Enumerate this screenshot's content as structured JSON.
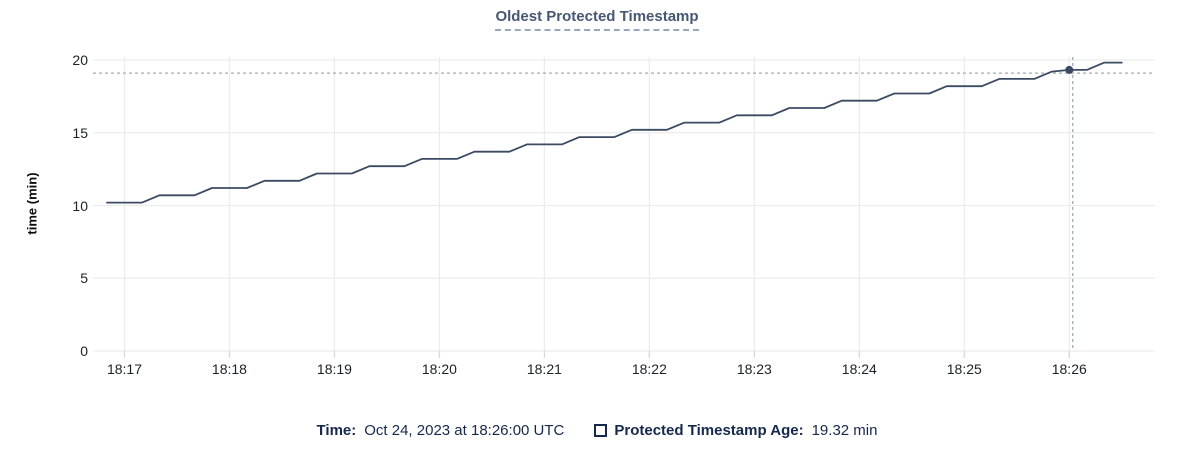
{
  "title": {
    "text": "Oldest Protected Timestamp"
  },
  "legend": {
    "time_label": "Time:",
    "time_value": "Oct 24, 2023 at 18:26:00 UTC",
    "series_label": "Protected Timestamp Age:",
    "series_value": "19.32 min"
  },
  "colors": {
    "background": "#ffffff",
    "title_text": "#475872",
    "title_underline": "#9aa6bf",
    "grid": "#ececec",
    "axis_tick_mark": "#d8d8d8",
    "tick_text": "#1e2126",
    "line": "#3b4a63",
    "marker": "#3b4a63",
    "crosshair": "#9dabb7",
    "legend_text": "#16294c"
  },
  "chart_data": {
    "type": "line",
    "title": "Oldest Protected Timestamp",
    "xlabel": "",
    "ylabel": "time (min)",
    "ylim": [
      0,
      20
    ],
    "y_ticks": [
      20,
      15,
      10,
      5,
      0
    ],
    "x_domain_s": [
      -18,
      589
    ],
    "x_ticks": [
      {
        "t": 0,
        "label": "18:17"
      },
      {
        "t": 60,
        "label": "18:18"
      },
      {
        "t": 120,
        "label": "18:19"
      },
      {
        "t": 180,
        "label": "18:20"
      },
      {
        "t": 240,
        "label": "18:21"
      },
      {
        "t": 300,
        "label": "18:22"
      },
      {
        "t": 360,
        "label": "18:23"
      },
      {
        "t": 420,
        "label": "18:24"
      },
      {
        "t": 480,
        "label": "18:25"
      },
      {
        "t": 540,
        "label": "18:26"
      }
    ],
    "grid": true,
    "legend_position": "bottom",
    "series": [
      {
        "name": "Protected Timestamp Age",
        "unit": "min",
        "points": [
          [
            -10,
            10.2
          ],
          [
            0,
            10.2
          ],
          [
            10,
            10.2
          ],
          [
            20,
            10.7
          ],
          [
            30,
            10.7
          ],
          [
            40,
            10.7
          ],
          [
            50,
            11.2
          ],
          [
            60,
            11.2
          ],
          [
            70,
            11.2
          ],
          [
            80,
            11.7
          ],
          [
            90,
            11.7
          ],
          [
            100,
            11.7
          ],
          [
            110,
            12.2
          ],
          [
            120,
            12.2
          ],
          [
            130,
            12.2
          ],
          [
            140,
            12.7
          ],
          [
            150,
            12.7
          ],
          [
            160,
            12.7
          ],
          [
            170,
            13.2
          ],
          [
            180,
            13.2
          ],
          [
            190,
            13.2
          ],
          [
            200,
            13.7
          ],
          [
            210,
            13.7
          ],
          [
            220,
            13.7
          ],
          [
            230,
            14.2
          ],
          [
            240,
            14.2
          ],
          [
            250,
            14.2
          ],
          [
            260,
            14.7
          ],
          [
            270,
            14.7
          ],
          [
            280,
            14.7
          ],
          [
            290,
            15.2
          ],
          [
            300,
            15.2
          ],
          [
            310,
            15.2
          ],
          [
            320,
            15.7
          ],
          [
            330,
            15.7
          ],
          [
            340,
            15.7
          ],
          [
            350,
            16.2
          ],
          [
            360,
            16.2
          ],
          [
            370,
            16.2
          ],
          [
            380,
            16.7
          ],
          [
            390,
            16.7
          ],
          [
            400,
            16.7
          ],
          [
            410,
            17.2
          ],
          [
            420,
            17.2
          ],
          [
            430,
            17.2
          ],
          [
            440,
            17.7
          ],
          [
            450,
            17.7
          ],
          [
            460,
            17.7
          ],
          [
            470,
            18.2
          ],
          [
            480,
            18.2
          ],
          [
            490,
            18.2
          ],
          [
            500,
            18.7
          ],
          [
            510,
            18.7
          ],
          [
            520,
            18.7
          ],
          [
            530,
            19.2
          ],
          [
            540,
            19.32
          ],
          [
            550,
            19.32
          ],
          [
            560,
            19.82
          ],
          [
            570,
            19.82
          ]
        ]
      }
    ],
    "hover": {
      "time": "Oct 24, 2023 at 18:26:00 UTC",
      "value_min": 19.32,
      "snap_t": 540,
      "mouse_t": 542,
      "mouse_v": 19.1
    }
  }
}
